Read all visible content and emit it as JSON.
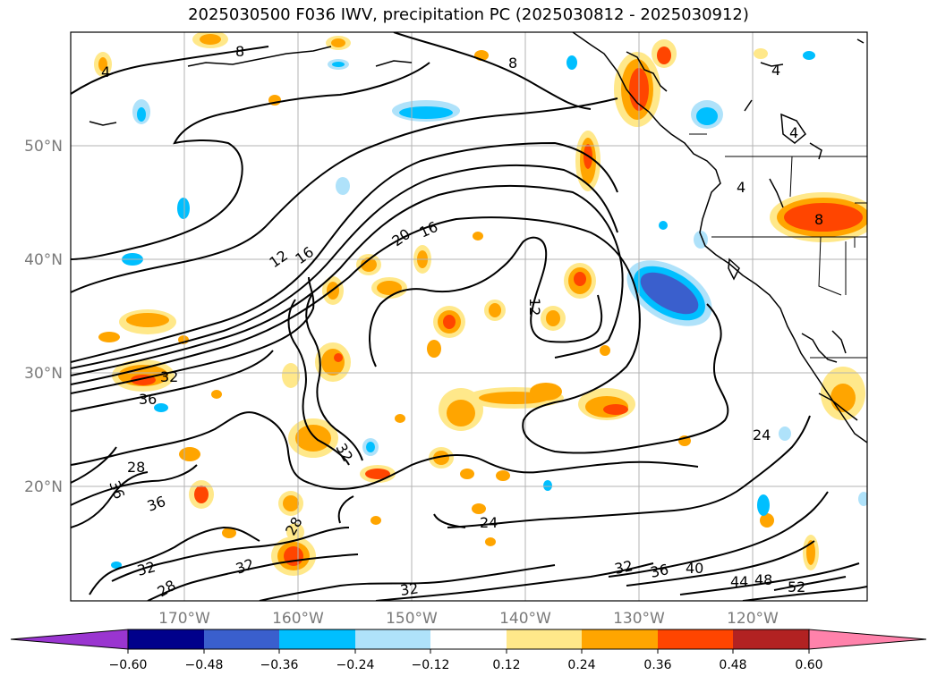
{
  "title": "2025030500 F036 IWV, precipitation PC (2025030812 - 2025030912)",
  "lat_labels": [
    "50°N",
    "40°N",
    "30°N",
    "20°N"
  ],
  "lon_labels": [
    "170°W",
    "160°W",
    "150°W",
    "140°W",
    "130°W",
    "120°W"
  ],
  "contour_labels": [
    "8",
    "8",
    "4",
    "4",
    "4",
    "4",
    "8",
    "12",
    "16",
    "20",
    "16",
    "12",
    "32",
    "36",
    "28",
    "36",
    "36",
    "32",
    "32",
    "28",
    "32",
    "28",
    "32",
    "24",
    "24",
    "32",
    "36",
    "40",
    "44",
    "48",
    "52"
  ],
  "colorbar": {
    "ticks": [
      "−0.60",
      "−0.48",
      "−0.36",
      "−0.24",
      "−0.12",
      "0.12",
      "0.24",
      "0.36",
      "0.48",
      "0.60"
    ],
    "colors": [
      "#9a35d0",
      "#00008b",
      "#3a5fcd",
      "#00bfff",
      "#afe2fa",
      "#ffffff",
      "#ffe88a",
      "#ffa500",
      "#ff4500",
      "#b22222",
      "#ff82ab"
    ]
  }
}
